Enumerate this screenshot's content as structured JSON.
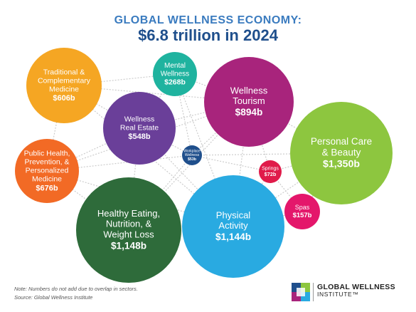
{
  "header": {
    "title_line1": "GLOBAL WELLNESS ECONOMY:",
    "title_line2": "$6.8 trillion in 2024"
  },
  "chart_data": {
    "type": "bubble",
    "title": "GLOBAL WELLNESS ECONOMY: $6.8 trillion in 2024",
    "unit": "US$ billions",
    "total_label": "$6.8 trillion",
    "sectors": [
      {
        "name": "Personal Care & Beauty",
        "label_lines": [
          "Personal Care",
          "& Beauty"
        ],
        "value": 1350,
        "value_label": "$1,350b",
        "color": "#8dc63f"
      },
      {
        "name": "Healthy Eating, Nutrition, & Weight Loss",
        "label_lines": [
          "Healthy Eating,",
          "Nutrition, &",
          "Weight Loss"
        ],
        "value": 1148,
        "value_label": "$1,148b",
        "color": "#2e6b3a"
      },
      {
        "name": "Physical Activity",
        "label_lines": [
          "Physical",
          "Activity"
        ],
        "value": 1144,
        "value_label": "$1,144b",
        "color": "#29aae1"
      },
      {
        "name": "Wellness Tourism",
        "label_lines": [
          "Wellness",
          "Tourism"
        ],
        "value": 894,
        "value_label": "$894b",
        "color": "#a8247c"
      },
      {
        "name": "Public Health, Prevention, & Personalized Medicine",
        "label_lines": [
          "Public Health,",
          "Prevention, &",
          "Personalized",
          "Medicine"
        ],
        "value": 676,
        "value_label": "$676b",
        "color": "#f26a25"
      },
      {
        "name": "Traditional & Complementary Medicine",
        "label_lines": [
          "Traditional &",
          "Complementary",
          "Medicine"
        ],
        "value": 606,
        "value_label": "$606b",
        "color": "#f5a623"
      },
      {
        "name": "Wellness Real Estate",
        "label_lines": [
          "Wellness",
          "Real Estate"
        ],
        "value": 548,
        "value_label": "$548b",
        "color": "#6a3f99"
      },
      {
        "name": "Mental Wellness",
        "label_lines": [
          "Mental",
          "Wellness"
        ],
        "value": 268,
        "value_label": "$268b",
        "color": "#1fb39f"
      },
      {
        "name": "Spas",
        "label_lines": [
          "Spas"
        ],
        "value": 157,
        "value_label": "$157b",
        "color": "#e4176b"
      },
      {
        "name": "Springs",
        "label_lines": [
          "Springs"
        ],
        "value": 72,
        "value_label": "$72b",
        "color": "#e01b4a"
      },
      {
        "name": "Workplace Wellness",
        "label_lines": [
          "Workplace",
          "Wellness"
        ],
        "value": 53,
        "value_label": "$53b",
        "color": "#1f4f8c"
      }
    ],
    "connector_color": "#cccccc"
  },
  "footnotes": {
    "note": "Note: Numbers do not add due to overlap in sectors.",
    "source": "Source: Global Wellness Institute"
  },
  "logo": {
    "line1": "GLOBAL WELLNESS",
    "line2": "INSTITUTE™"
  }
}
